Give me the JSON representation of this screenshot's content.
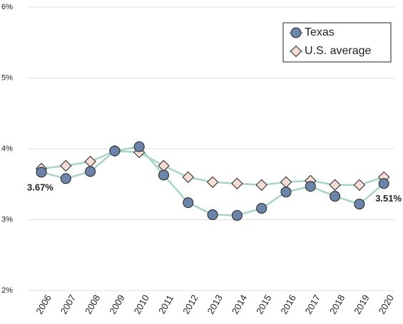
{
  "chart_data": {
    "type": "line",
    "categories": [
      "2006",
      "2007",
      "2008",
      "2009",
      "2010",
      "2011",
      "2012",
      "2013",
      "2014",
      "2015",
      "2016",
      "2017",
      "2018",
      "2019",
      "2020"
    ],
    "series": [
      {
        "name": "Texas",
        "color": "#6b84a8",
        "marker": "circle",
        "values": [
          3.67,
          3.58,
          3.68,
          3.97,
          4.03,
          3.63,
          3.24,
          3.07,
          3.06,
          3.16,
          3.39,
          3.47,
          3.33,
          3.22,
          3.51
        ],
        "value_labels": [
          "3.67%",
          null,
          null,
          null,
          null,
          null,
          null,
          null,
          null,
          null,
          null,
          null,
          null,
          null,
          "3.51%"
        ]
      },
      {
        "name": "U.S. average",
        "color": "#f5ddd5",
        "marker": "diamond",
        "values": [
          3.72,
          3.76,
          3.82,
          3.97,
          3.95,
          3.76,
          3.6,
          3.53,
          3.51,
          3.49,
          3.53,
          3.55,
          3.49,
          3.49,
          3.6
        ]
      }
    ],
    "line_color": "#a8d5c5",
    "ylim": [
      2,
      6
    ],
    "yticks": [
      {
        "value": 2,
        "label": "2%"
      },
      {
        "value": 3,
        "label": "3%"
      },
      {
        "value": 4,
        "label": "4%"
      },
      {
        "value": 5,
        "label": "5%"
      },
      {
        "value": 6,
        "label": "6%"
      }
    ],
    "grid": true,
    "legend": "top-right"
  }
}
